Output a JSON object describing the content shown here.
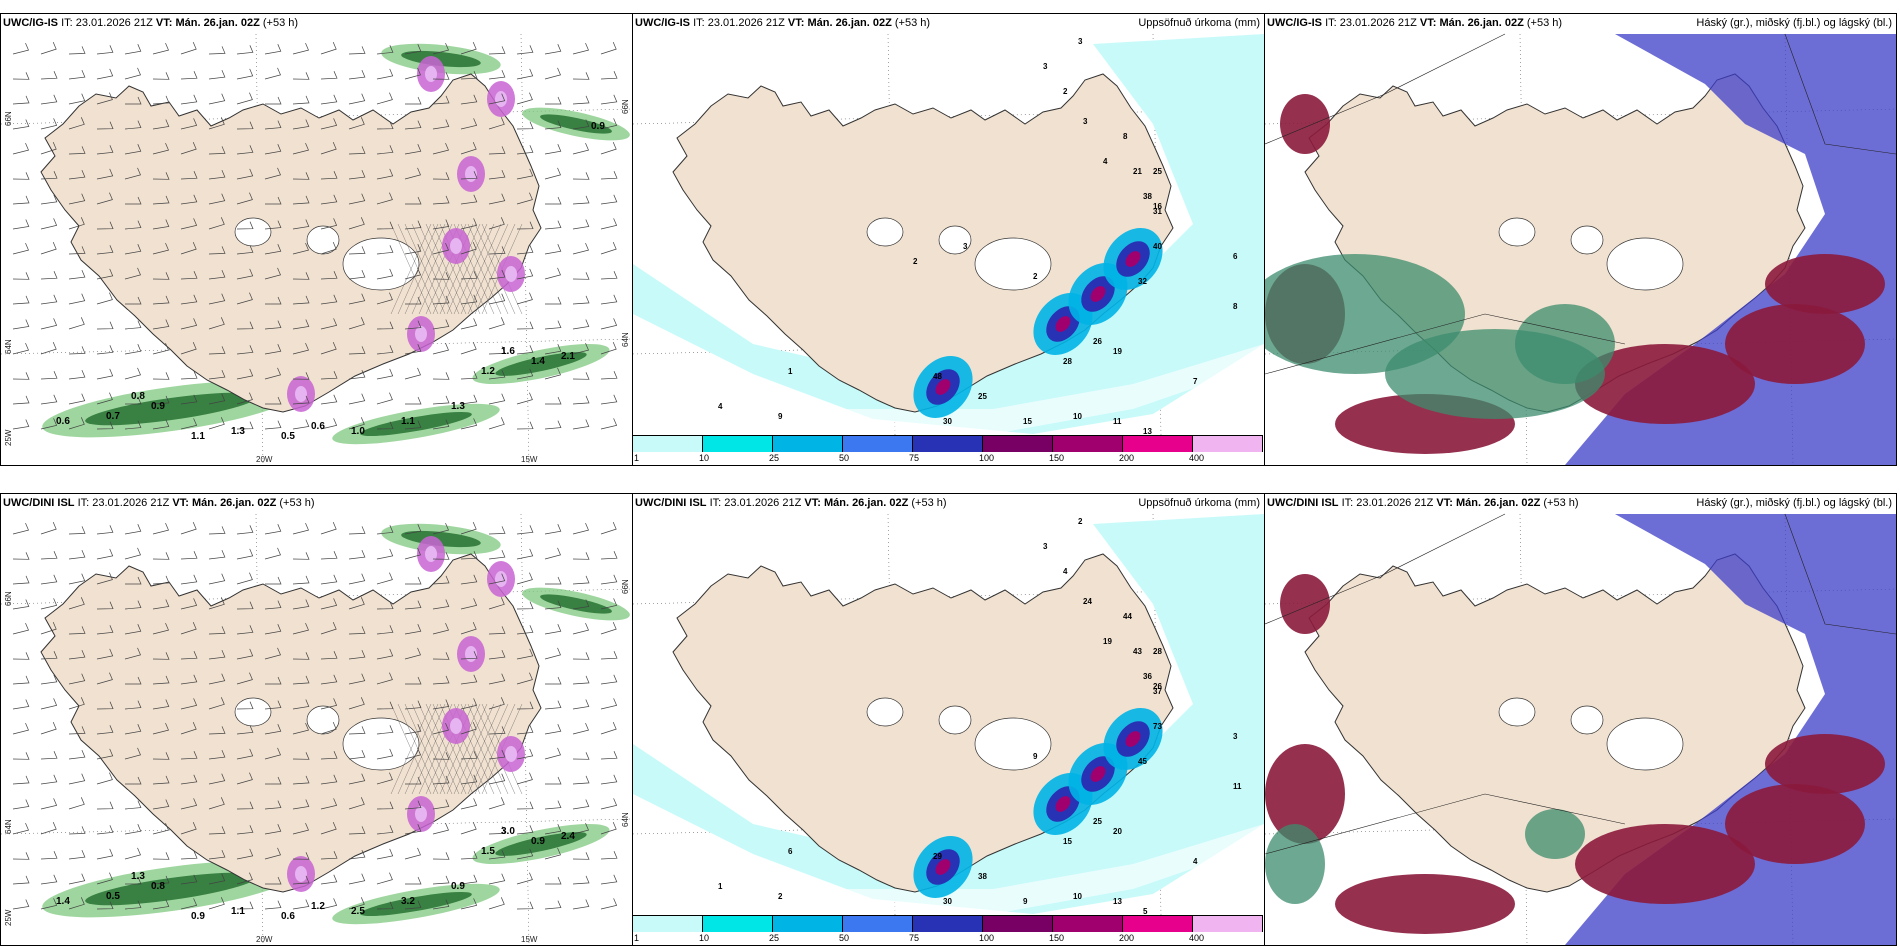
{
  "rows": [
    {
      "model": "UWC/IG-IS",
      "it_label": "IT:",
      "it_value": "23.01.2026 21Z",
      "vt_label": "VT:",
      "vt_value": "Mán. 26.jan. 02Z",
      "lead": "(+53 h)",
      "panels": [
        {
          "kind": "wind",
          "title_right": ""
        },
        {
          "kind": "precip",
          "title_right": "Uppsöfnuð úrkoma (mm)"
        },
        {
          "kind": "cloud",
          "title_right": "Háský (gr.), miðský (fj.bl.) og lágský (bl.)"
        }
      ]
    },
    {
      "model": "UWC/DINI ISL",
      "it_label": "IT:",
      "it_value": "23.01.2026 21Z",
      "vt_label": "VT:",
      "vt_value": "Mán. 26.jan. 02Z",
      "lead": "(+53 h)",
      "panels": [
        {
          "kind": "wind",
          "title_right": ""
        },
        {
          "kind": "precip",
          "title_right": "Uppsöfnuð úrkoma (mm)"
        },
        {
          "kind": "cloud",
          "title_right": "Háský (gr.), miðský (fj.bl.) og lágský (bl.)"
        }
      ]
    }
  ],
  "axis_labels": {
    "lat_66": "66N",
    "lat_64": "64N",
    "lat_63": "25W",
    "lon_20": "20W",
    "lon_15": "15W",
    "right_66": "66N",
    "right_64": "64N"
  },
  "legend": {
    "ticks": [
      "1",
      "10",
      "25",
      "50",
      "75",
      "100",
      "150",
      "200",
      "400"
    ],
    "colors": [
      "#c8fafa",
      "#00e6e6",
      "#00b4e6",
      "#3c78f0",
      "#2832b4",
      "#780064",
      "#a0006e",
      "#e6008c",
      "#f0b4f0"
    ]
  },
  "colors": {
    "land": "#f1e1d0",
    "ocean": "#ffffff",
    "coast": "#333333",
    "precip_light": "#c8fafa",
    "precip_mid": "#00d2e6",
    "high_cloud": "#4682b4",
    "mid_cloud": "#8b1a3c",
    "low_cloud": "#3c3cc8",
    "shower": "#2e8b3a",
    "snow_pink": "#c864d2"
  },
  "precip_labels_top": [
    "3",
    "3",
    "2",
    "3",
    "4",
    "8",
    "21",
    "25",
    "38",
    "31",
    "40",
    "32",
    "16",
    "19",
    "26",
    "28",
    "48",
    "30",
    "25",
    "15",
    "10",
    "11",
    "13",
    "7",
    "4",
    "9",
    "6",
    "8",
    "1",
    "2",
    "3",
    "2"
  ],
  "precip_labels_bottom": [
    "2",
    "3",
    "4",
    "24",
    "19",
    "44",
    "43",
    "28",
    "36",
    "37",
    "73",
    "45",
    "26",
    "20",
    "25",
    "15",
    "29",
    "30",
    "38",
    "9",
    "10",
    "13",
    "5",
    "4",
    "1",
    "2",
    "3",
    "11",
    "6",
    "9"
  ],
  "wind_labels_top": [
    "0.6",
    "0.7",
    "0.8",
    "0.9",
    "1.1",
    "1.3",
    "0.5",
    "0.6",
    "1.0",
    "1.1",
    "1.3",
    "1.2",
    "1.6",
    "1.4",
    "2.1",
    "0.9"
  ],
  "wind_labels_bottom": [
    "1.4",
    "0.5",
    "1.3",
    "0.8",
    "0.9",
    "1.1",
    "0.6",
    "1.2",
    "2.5",
    "3.2",
    "0.9",
    "1.5",
    "3.0",
    "0.9",
    "2.4"
  ]
}
